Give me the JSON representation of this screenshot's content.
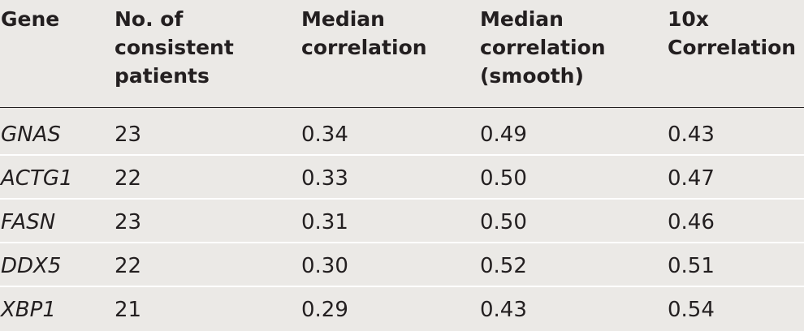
{
  "headers": [
    [
      "Gene"
    ],
    [
      "No. of",
      "consistent",
      "patients"
    ],
    [
      "Median",
      "correlation"
    ],
    [
      "Median",
      "correlation",
      "(smooth)"
    ],
    [
      "10x",
      "Correlation"
    ]
  ],
  "rows": [
    [
      "GNAS",
      "23",
      "0.34",
      "0.49",
      "0.43"
    ],
    [
      "ACTG1",
      "22",
      "0.33",
      "0.50",
      "0.47"
    ],
    [
      "FASN",
      "23",
      "0.31",
      "0.50",
      "0.46"
    ],
    [
      "DDX5",
      "22",
      "0.30",
      "0.52",
      "0.51"
    ],
    [
      "XBP1",
      "21",
      "0.29",
      "0.43",
      "0.54"
    ]
  ]
}
